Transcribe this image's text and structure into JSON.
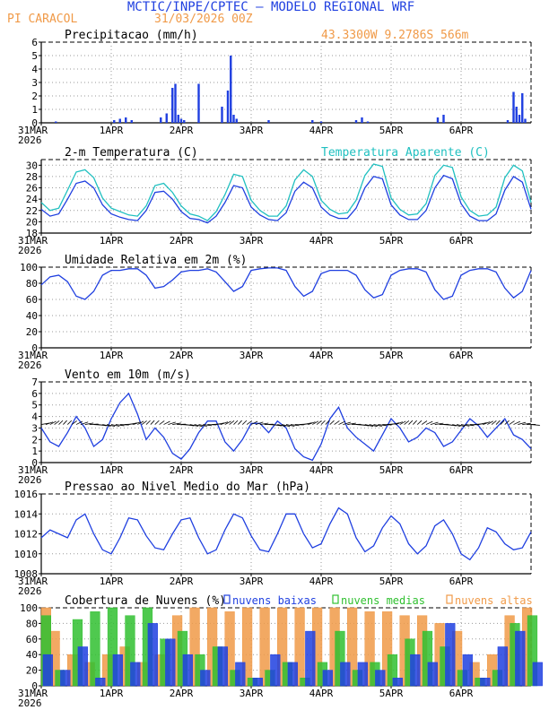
{
  "header": {
    "title": "MCTIC/INPE/CPTEC – MODELO REGIONAL WRF",
    "location": "PI CARACOL",
    "run": "31/03/2026 00Z",
    "coords": "43.3300W 9.2786S 566m"
  },
  "colors": {
    "blue": "#1f3fe0",
    "cyan": "#20c0c0",
    "orange": "#f09a48",
    "green": "#30c030",
    "title": "#2040e0"
  },
  "chart_data": [
    {
      "type": "bar",
      "title": "Precipitacao (mm/h)",
      "ylim": [
        0,
        6
      ],
      "yticks": [
        0,
        1,
        2,
        3,
        4,
        5,
        6
      ],
      "xticks": [
        "31MAR",
        "1APR",
        "2APR",
        "3APR",
        "4APR",
        "5APR",
        "6APR"
      ],
      "xtick_year": "2026",
      "x_range_hours": [
        0,
        168
      ],
      "x": [
        5,
        25,
        27,
        29,
        31,
        41,
        43,
        45,
        46,
        47,
        48,
        49,
        54,
        62,
        64,
        65,
        66,
        67,
        78,
        93,
        96,
        108,
        110,
        112,
        136,
        138,
        160,
        162,
        163,
        164,
        165,
        166
      ],
      "values": [
        0.1,
        0.2,
        0.3,
        0.4,
        0.2,
        0.4,
        0.7,
        2.6,
        2.9,
        0.6,
        0.3,
        0.2,
        2.9,
        1.2,
        2.4,
        5.0,
        0.6,
        0.3,
        0.2,
        0.2,
        0.1,
        0.2,
        0.4,
        0.1,
        0.4,
        0.6,
        0.2,
        2.3,
        1.2,
        0.6,
        2.2,
        0.3
      ]
    },
    {
      "type": "line",
      "title": "2-m Temperatura (C)",
      "legend2": "Temperatura Aparente (C)",
      "ylim": [
        18,
        31
      ],
      "yticks": [
        18,
        20,
        22,
        24,
        26,
        28,
        30
      ],
      "xticks": [
        "31MAR",
        "1APR",
        "2APR",
        "3APR",
        "4APR",
        "5APR",
        "6APR"
      ],
      "xtick_year": "2026",
      "x_range_hours": [
        0,
        168
      ],
      "series": [
        {
          "name": "2-m Temperatura (C)",
          "x": [
            0,
            3,
            6,
            9,
            12,
            15,
            18,
            21,
            24,
            27,
            30,
            33,
            36,
            39,
            42,
            45,
            48,
            51,
            54,
            57,
            60,
            63,
            66,
            69,
            72,
            75,
            78,
            81,
            84,
            87,
            90,
            93,
            96,
            99,
            102,
            105,
            108,
            111,
            114,
            117,
            120,
            123,
            126,
            129,
            132,
            135,
            138,
            141,
            144,
            147,
            150,
            153,
            156,
            159,
            162,
            165,
            168
          ],
          "values": [
            22.2,
            21.0,
            21.4,
            24.0,
            26.8,
            27.2,
            26.0,
            23.0,
            21.4,
            20.8,
            20.4,
            20.2,
            22.0,
            25.2,
            25.4,
            24.0,
            21.8,
            20.6,
            20.4,
            19.8,
            21.0,
            23.4,
            26.4,
            26.0,
            22.6,
            21.2,
            20.4,
            20.2,
            21.6,
            25.4,
            27.0,
            26.0,
            22.6,
            21.2,
            20.6,
            20.6,
            22.4,
            26.0,
            28.0,
            27.6,
            23.0,
            21.2,
            20.4,
            20.4,
            22.0,
            26.0,
            28.2,
            27.6,
            23.2,
            21.0,
            20.2,
            20.2,
            21.4,
            25.6,
            28.0,
            27.0,
            22.2
          ]
        },
        {
          "name": "Temperatura Aparente (C)",
          "x": [
            0,
            3,
            6,
            9,
            12,
            15,
            18,
            21,
            24,
            27,
            30,
            33,
            36,
            39,
            42,
            45,
            48,
            51,
            54,
            57,
            60,
            63,
            66,
            69,
            72,
            75,
            78,
            81,
            84,
            87,
            90,
            93,
            96,
            99,
            102,
            105,
            108,
            111,
            114,
            117,
            120,
            123,
            126,
            129,
            132,
            135,
            138,
            141,
            144,
            147,
            150,
            153,
            156,
            159,
            162,
            165,
            168
          ],
          "values": [
            23.4,
            22.0,
            22.4,
            25.6,
            28.8,
            29.2,
            27.8,
            24.2,
            22.4,
            21.8,
            21.2,
            21.0,
            22.8,
            26.4,
            26.8,
            25.2,
            22.8,
            21.4,
            21.0,
            20.2,
            21.8,
            24.8,
            28.4,
            28.0,
            23.8,
            22.0,
            21.0,
            21.0,
            22.8,
            27.4,
            29.2,
            28.0,
            23.8,
            22.2,
            21.4,
            21.6,
            23.8,
            28.2,
            30.2,
            29.8,
            24.2,
            22.2,
            21.2,
            21.4,
            23.2,
            28.2,
            30.0,
            29.6,
            24.4,
            22.0,
            21.0,
            21.2,
            22.6,
            27.8,
            30.0,
            29.0,
            23.4
          ]
        }
      ]
    },
    {
      "type": "line",
      "title": "Umidade Relativa em 2m (%)",
      "ylim": [
        0,
        100
      ],
      "yticks": [
        0,
        20,
        40,
        60,
        80,
        100
      ],
      "xticks": [
        "31MAR",
        "1APR",
        "2APR",
        "3APR",
        "4APR",
        "5APR",
        "6APR"
      ],
      "xtick_year": "2026",
      "x_range_hours": [
        0,
        168
      ],
      "series": [
        {
          "name": "Umidade Relativa",
          "x": [
            0,
            3,
            6,
            9,
            12,
            15,
            18,
            21,
            24,
            27,
            30,
            33,
            36,
            39,
            42,
            45,
            48,
            51,
            54,
            57,
            60,
            63,
            66,
            69,
            72,
            75,
            78,
            81,
            84,
            87,
            90,
            93,
            96,
            99,
            102,
            105,
            108,
            111,
            114,
            117,
            120,
            123,
            126,
            129,
            132,
            135,
            138,
            141,
            144,
            147,
            150,
            153,
            156,
            159,
            162,
            165,
            168
          ],
          "values": [
            78,
            88,
            90,
            82,
            64,
            60,
            70,
            90,
            96,
            96,
            98,
            98,
            90,
            74,
            76,
            84,
            94,
            96,
            96,
            98,
            94,
            82,
            70,
            76,
            96,
            98,
            99,
            99,
            96,
            76,
            64,
            70,
            92,
            96,
            96,
            96,
            90,
            72,
            62,
            66,
            90,
            96,
            98,
            98,
            94,
            72,
            60,
            64,
            90,
            96,
            98,
            98,
            94,
            74,
            62,
            70,
            96
          ]
        }
      ]
    },
    {
      "type": "line",
      "title": "Vento em 10m (m/s)",
      "ylim": [
        0,
        7
      ],
      "yticks": [
        0,
        1,
        2,
        3,
        4,
        5,
        6,
        7
      ],
      "xticks": [
        "31MAR",
        "1APR",
        "2APR",
        "3APR",
        "4APR",
        "5APR",
        "6APR"
      ],
      "xtick_year": "2026",
      "x_range_hours": [
        0,
        168
      ],
      "barb_row_value": 3.3,
      "series": [
        {
          "name": "Vento em 10m",
          "x": [
            0,
            3,
            6,
            9,
            12,
            15,
            18,
            21,
            24,
            27,
            30,
            33,
            36,
            39,
            42,
            45,
            48,
            51,
            54,
            57,
            60,
            63,
            66,
            69,
            72,
            75,
            78,
            81,
            84,
            87,
            90,
            93,
            96,
            99,
            102,
            105,
            108,
            111,
            114,
            117,
            120,
            123,
            126,
            129,
            132,
            135,
            138,
            141,
            144,
            147,
            150,
            153,
            156,
            159,
            162,
            165,
            168
          ],
          "values": [
            3.0,
            1.8,
            1.4,
            2.6,
            4.0,
            3.0,
            1.4,
            2.0,
            3.8,
            5.2,
            6.0,
            4.2,
            2.0,
            3.0,
            2.2,
            0.8,
            0.3,
            1.2,
            2.6,
            3.6,
            3.6,
            1.8,
            1.0,
            2.0,
            3.4,
            3.4,
            2.6,
            3.6,
            3.0,
            1.2,
            0.5,
            0.2,
            1.6,
            3.8,
            4.8,
            3.0,
            2.2,
            1.6,
            1.0,
            2.4,
            3.8,
            3.0,
            1.8,
            2.2,
            3.0,
            2.6,
            1.4,
            1.8,
            2.8,
            3.8,
            3.2,
            2.2,
            3.0,
            3.8,
            2.4,
            2.0,
            1.2
          ]
        }
      ]
    },
    {
      "type": "line",
      "title": "Pressao ao Nivel Medio do Mar (hPa)",
      "ylim": [
        1008,
        1016
      ],
      "yticks": [
        1008,
        1010,
        1012,
        1014,
        1016
      ],
      "xticks": [
        "31MAR",
        "1APR",
        "2APR",
        "3APR",
        "4APR",
        "5APR",
        "6APR"
      ],
      "xtick_year": "2026",
      "x_range_hours": [
        0,
        168
      ],
      "series": [
        {
          "name": "Pressao",
          "x": [
            0,
            3,
            6,
            9,
            12,
            15,
            18,
            21,
            24,
            27,
            30,
            33,
            36,
            39,
            42,
            45,
            48,
            51,
            54,
            57,
            60,
            63,
            66,
            69,
            72,
            75,
            78,
            81,
            84,
            87,
            90,
            93,
            96,
            99,
            102,
            105,
            108,
            111,
            114,
            117,
            120,
            123,
            126,
            129,
            132,
            135,
            138,
            141,
            144,
            147,
            150,
            153,
            156,
            159,
            162,
            165,
            168
          ],
          "values": [
            1011.6,
            1012.4,
            1012.0,
            1011.6,
            1013.4,
            1014.0,
            1012.0,
            1010.4,
            1010.0,
            1011.6,
            1013.6,
            1013.4,
            1011.8,
            1010.6,
            1010.4,
            1012.0,
            1013.4,
            1013.6,
            1011.6,
            1010.0,
            1010.4,
            1012.4,
            1014.0,
            1013.6,
            1011.8,
            1010.4,
            1010.2,
            1012.0,
            1014.0,
            1014.0,
            1012.0,
            1010.6,
            1011.0,
            1013.0,
            1014.6,
            1014.0,
            1011.6,
            1010.2,
            1010.8,
            1012.6,
            1013.8,
            1013.0,
            1011.0,
            1010.0,
            1010.8,
            1012.8,
            1013.4,
            1012.0,
            1010.0,
            1009.4,
            1010.6,
            1012.6,
            1012.2,
            1011.0,
            1010.4,
            1010.6,
            1012.2
          ]
        }
      ]
    },
    {
      "type": "bar",
      "title": "Cobertura de Nuvens (%)",
      "ylim": [
        0,
        100
      ],
      "yticks": [
        0,
        20,
        40,
        60,
        80,
        100
      ],
      "xticks": [
        "31MAR",
        "1APR",
        "2APR",
        "3APR",
        "4APR",
        "5APR",
        "6APR"
      ],
      "xtick_year": "2026",
      "x_range_hours": [
        0,
        168
      ],
      "legend": [
        "nuvens baixas",
        "nuvens medias",
        "nuvens altas"
      ],
      "series": [
        {
          "name": "nuvens altas",
          "x": [
            0,
            6,
            12,
            18,
            24,
            30,
            36,
            42,
            48,
            54,
            60,
            66,
            72,
            78,
            84,
            90,
            96,
            102,
            108,
            114,
            120,
            126,
            132,
            138,
            144,
            150,
            156,
            162,
            168
          ],
          "values": [
            100,
            70,
            40,
            30,
            40,
            50,
            30,
            40,
            90,
            100,
            100,
            95,
            100,
            100,
            100,
            100,
            100,
            100,
            100,
            95,
            95,
            90,
            90,
            80,
            70,
            30,
            40,
            90,
            100
          ]
        },
        {
          "name": "nuvens medias",
          "x": [
            0,
            6,
            12,
            18,
            24,
            30,
            36,
            42,
            48,
            54,
            60,
            66,
            72,
            78,
            84,
            90,
            96,
            102,
            108,
            114,
            120,
            126,
            132,
            138,
            144,
            150,
            156,
            162,
            168
          ],
          "values": [
            90,
            20,
            85,
            95,
            100,
            90,
            100,
            60,
            70,
            40,
            50,
            20,
            10,
            20,
            30,
            10,
            30,
            70,
            20,
            30,
            40,
            60,
            70,
            50,
            20,
            10,
            20,
            80,
            90
          ]
        },
        {
          "name": "nuvens baixas",
          "x": [
            0,
            6,
            12,
            18,
            24,
            30,
            36,
            42,
            48,
            54,
            60,
            66,
            72,
            78,
            84,
            90,
            96,
            102,
            108,
            114,
            120,
            126,
            132,
            138,
            144,
            150,
            156,
            162,
            168
          ],
          "values": [
            40,
            20,
            50,
            10,
            40,
            30,
            80,
            60,
            40,
            20,
            50,
            30,
            10,
            40,
            30,
            70,
            20,
            30,
            30,
            20,
            10,
            40,
            30,
            80,
            40,
            10,
            50,
            70,
            30
          ]
        }
      ]
    }
  ]
}
